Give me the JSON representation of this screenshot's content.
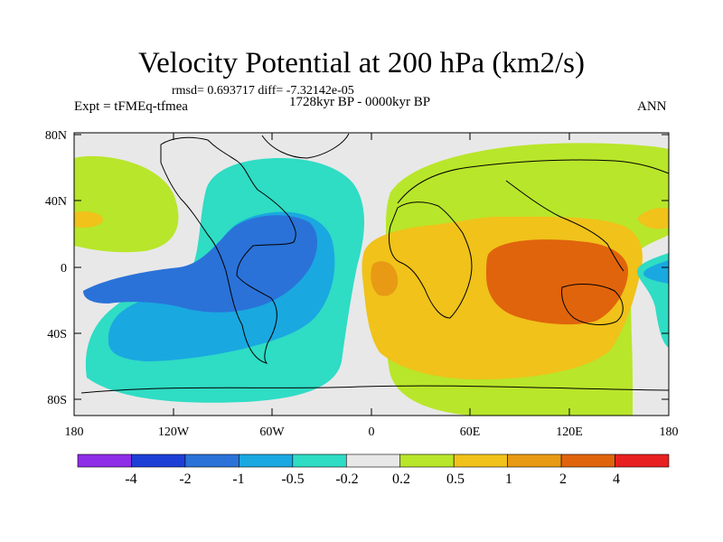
{
  "title": "Velocity Potential at 200 hPa (km2/s)",
  "stats": "rmsd= 0.693717 diff= -7.32142e-05",
  "left_label": "Expt = tFMEq-tfmea",
  "center_label": "1728kyr BP - 0000kyr BP",
  "right_label": "ANN",
  "chart_data": {
    "type": "contour-map",
    "variable": "Velocity potential difference at 200 hPa",
    "units": "km2/s",
    "x_ticks": [
      "180",
      "120W",
      "60W",
      "0",
      "60E",
      "120E",
      "180"
    ],
    "y_ticks": [
      "80N",
      "40N",
      "0",
      "40S",
      "80S"
    ],
    "colorbar_levels": [
      "-4",
      "-2",
      "-1",
      "-0.5",
      "-0.2",
      "0.2",
      "0.5",
      "1",
      "2",
      "4"
    ],
    "colorbar_colors": [
      "#8e2ee8",
      "#1e3fd6",
      "#2a72d8",
      "#1aa8e0",
      "#2fdcc4",
      "#e8e8e8",
      "#b8e62a",
      "#f0c21a",
      "#e89a14",
      "#e0640c",
      "#e82020"
    ],
    "features": [
      {
        "region": "Americas / Atlantic",
        "sign": "negative",
        "min_level": "-1"
      },
      {
        "region": "Africa / Indian Ocean / Maritime Continent",
        "sign": "positive",
        "max_level": "2"
      }
    ]
  }
}
